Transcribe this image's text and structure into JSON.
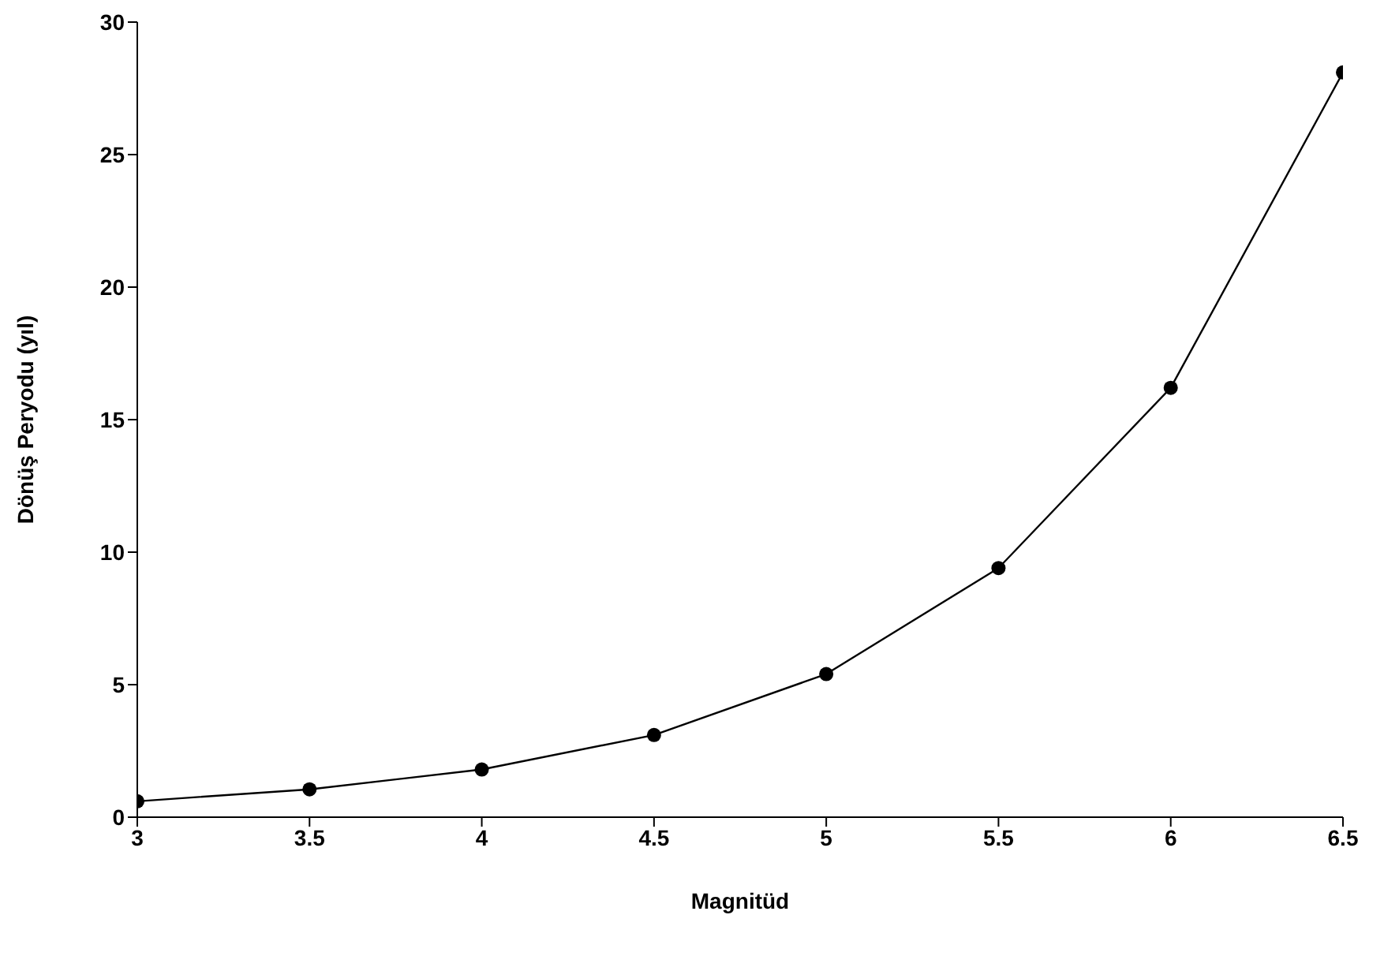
{
  "chart_data": {
    "type": "line",
    "xlabel": "Magnitüd",
    "ylabel": "Dönüş Peryodu (yıl)",
    "x": [
      3,
      3.5,
      4,
      4.5,
      5,
      5.5,
      6,
      6.5
    ],
    "series": [
      {
        "color": "#000000",
        "values": [
          0.6,
          1.05,
          1.8,
          3.1,
          5.4,
          9.4,
          16.2,
          28.1
        ]
      }
    ],
    "xlim": [
      3,
      6.5
    ],
    "xticks": [
      3,
      3.5,
      4,
      4.5,
      5,
      5.5,
      6,
      6.5
    ],
    "ylim": [
      0,
      30
    ],
    "yticks": [
      0,
      5,
      10,
      15,
      20,
      25,
      30
    ],
    "grid": false,
    "legend": false,
    "marker": "circle",
    "line_style": "solid"
  }
}
